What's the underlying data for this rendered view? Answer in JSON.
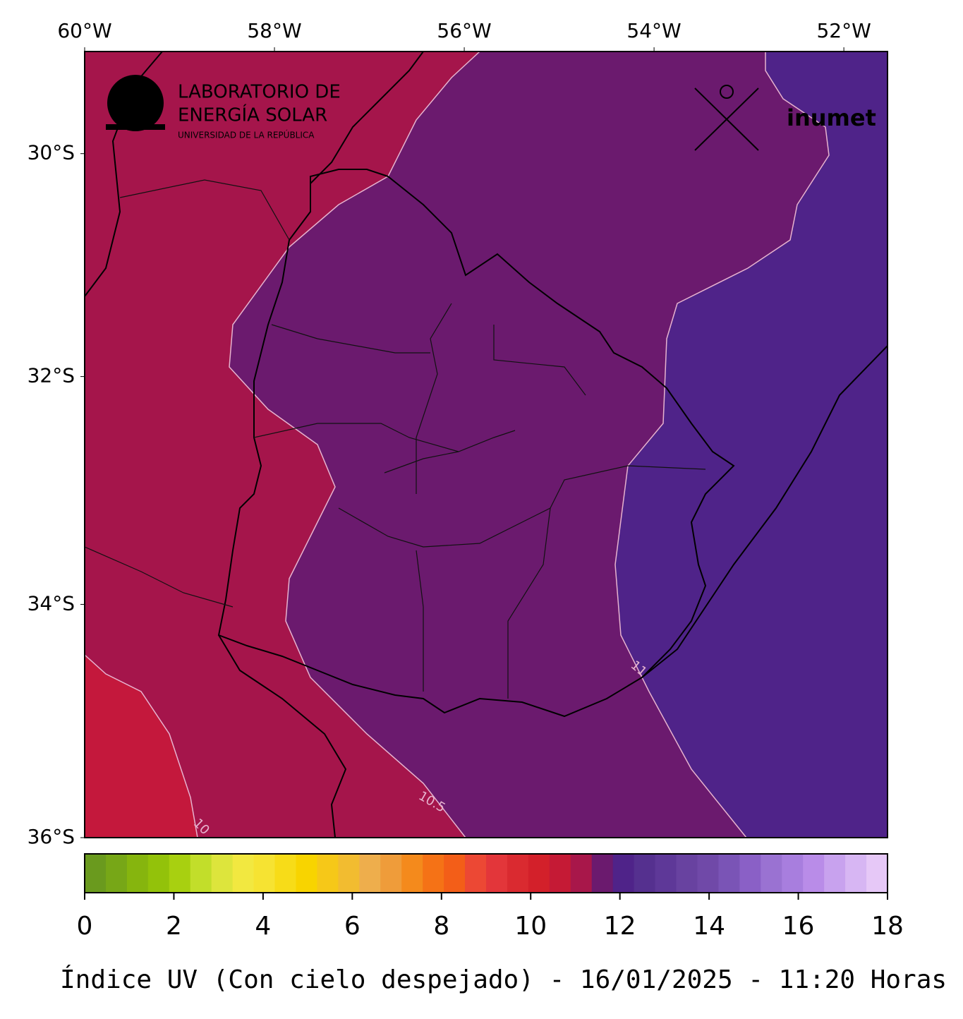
{
  "header": {
    "lab_logo": {
      "line1": "LABORATORIO DE",
      "line2": "ENERGÍA SOLAR",
      "line3": "UNIVERSIDAD DE LA REPÚBLICA"
    },
    "inumet_logo": "inumet"
  },
  "map": {
    "lon_range": [
      -60,
      -51.54
    ],
    "lat_range": [
      -36,
      -29.07
    ],
    "lon_ticks": [
      {
        "value": -60,
        "label": "60°W"
      },
      {
        "value": -58,
        "label": "58°W"
      },
      {
        "value": -56,
        "label": "56°W"
      },
      {
        "value": -54,
        "label": "54°W"
      },
      {
        "value": -52,
        "label": "52°W"
      }
    ],
    "lat_ticks": [
      {
        "value": -30,
        "label": "30°S"
      },
      {
        "value": -32,
        "label": "32°S"
      },
      {
        "value": -34,
        "label": "34°S"
      },
      {
        "value": -36,
        "label": "36°S"
      }
    ],
    "contour_labels": [
      10,
      10.5,
      11
    ]
  },
  "colorbar": {
    "range": [
      0,
      18
    ],
    "ticks": [
      0,
      2,
      4,
      6,
      8,
      10,
      12,
      14,
      16,
      18
    ],
    "colors": [
      "#6a9a1e",
      "#77a717",
      "#86b50e",
      "#93c20a",
      "#a8d010",
      "#c2de2a",
      "#dde53c",
      "#f2e840",
      "#f6e332",
      "#f7dc18",
      "#f8d400",
      "#f6c818",
      "#f2bc30",
      "#eeae4c",
      "#ef9c3a",
      "#f48a1c",
      "#f57216",
      "#f35e18",
      "#ec4834",
      "#e3363a",
      "#da2a30",
      "#d3202a",
      "#c51a35",
      "#a8174a",
      "#6b1a6e",
      "#4f2389",
      "#55308f",
      "#5e3898",
      "#6842a0",
      "#7049a8",
      "#7a54b6",
      "#8a60c6",
      "#9a72d2",
      "#a87ede",
      "#b98ce8",
      "#c8a2ee",
      "#d7b6f3",
      "#e6c8f7"
    ]
  },
  "caption": "Índice UV (Con cielo despejado) - 16/01/2025 - 11:20 Horas"
}
